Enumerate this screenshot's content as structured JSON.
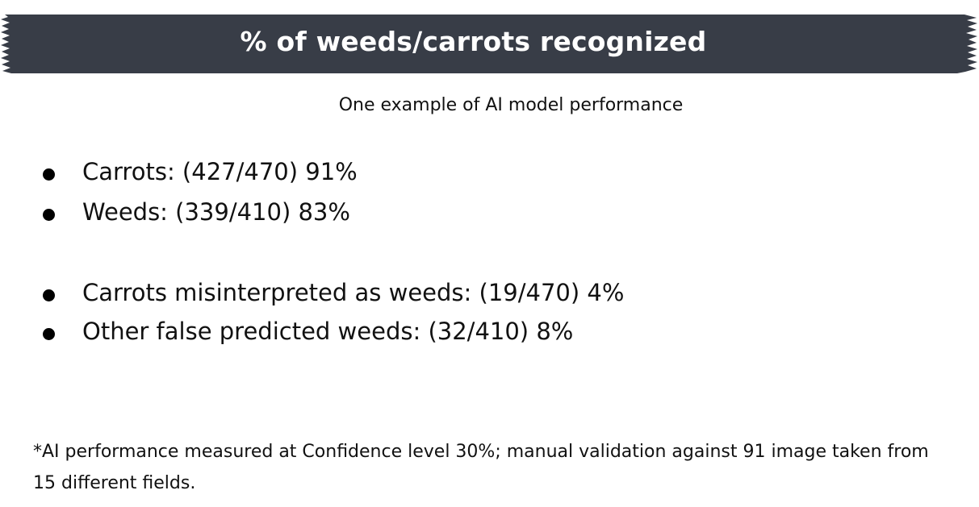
{
  "header": {
    "title": "% of weeds/carrots recognized"
  },
  "subtitle": "One example of AI model performance",
  "bullets": [
    {
      "text": "Carrots: (427/470) 91%"
    },
    {
      "text": "Weeds: (339/410) 83%"
    },
    {
      "text": "Carrots misinterpreted as weeds: (19/470) 4%"
    },
    {
      "text": "Other false predicted weeds: (32/410) 8%"
    }
  ],
  "footnote": "*AI performance measured at Confidence level 30%; manual validation against 91 image taken from 15 different fields.",
  "colors": {
    "banner_background": "#383d47",
    "banner_text": "#ffffff",
    "body_text": "#111111"
  }
}
